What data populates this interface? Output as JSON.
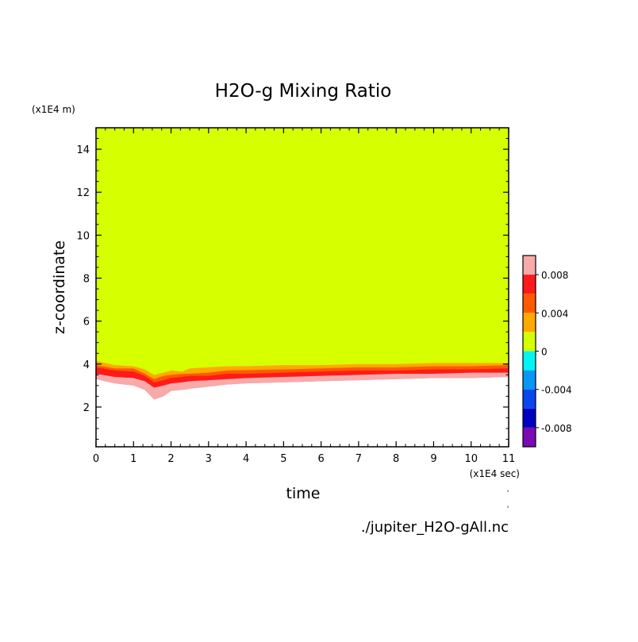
{
  "chart_data": {
    "type": "heatmap",
    "title": "H2O-g Mixing Ratio",
    "xlabel": "time",
    "ylabel": "z-coordinate",
    "x_unit": "(x1E4 sec)",
    "y_unit": "(x1E4 m)",
    "xlim": [
      0,
      11
    ],
    "ylim": [
      0.15,
      15
    ],
    "x_ticks": [
      "0",
      "1",
      "2",
      "3",
      "4",
      "5",
      "6",
      "7",
      "8",
      "9",
      "10",
      "11"
    ],
    "y_ticks": [
      "2",
      "4",
      "6",
      "8",
      "10",
      "12",
      "14"
    ],
    "colorbar": {
      "range": [
        -0.01,
        0.01
      ],
      "labels": [
        "0.008",
        "0.004",
        "0",
        "-0.004",
        "-0.008"
      ],
      "levels": [
        {
          "range": [
            0.008,
            0.01
          ],
          "color": "#f7aaaa"
        },
        {
          "range": [
            0.006,
            0.008
          ],
          "color": "#ff1a1a"
        },
        {
          "range": [
            0.004,
            0.006
          ],
          "color": "#ff5a00"
        },
        {
          "range": [
            0.002,
            0.004
          ],
          "color": "#ffaa00"
        },
        {
          "range": [
            0.0,
            0.002
          ],
          "color": "#d6ff00"
        },
        {
          "range": [
            -0.002,
            0.0
          ],
          "color": "#00f5f5"
        },
        {
          "range": [
            -0.004,
            -0.002
          ],
          "color": "#0a96f5"
        },
        {
          "range": [
            -0.006,
            -0.004
          ],
          "color": "#0a46f0"
        },
        {
          "range": [
            -0.008,
            -0.006
          ],
          "color": "#0000c0"
        },
        {
          "range": [
            -0.01,
            -0.008
          ],
          "color": "#7a0ab4"
        }
      ]
    },
    "background_fill": "#d6ff00",
    "below_fill": "#ffffff",
    "band_colors": [
      "#d6ff00",
      "#ffaa00",
      "#ff5a00",
      "#ff1a1a",
      "#f7aaaa"
    ],
    "band_x": [
      0,
      0.5,
      1,
      1.3,
      1.55,
      1.8,
      2,
      2.3,
      2.5,
      3,
      3.5,
      4,
      5,
      6,
      7,
      8,
      9,
      10,
      11
    ],
    "bands": [
      {
        "top": [
          4.5,
          4.3,
          4.3,
          4.0,
          4.2,
          4.05,
          4.1,
          4.1,
          4.3,
          4.1,
          4.15,
          4.15,
          4.1,
          4.1,
          4.1,
          4.1,
          4.15,
          4.15,
          4.15
        ]
      },
      {
        "top": [
          4.15,
          3.95,
          3.9,
          3.75,
          3.5,
          3.6,
          3.7,
          3.65,
          3.8,
          3.85,
          3.9,
          3.9,
          3.95,
          3.95,
          4.0,
          4.0,
          4.05,
          4.05,
          4.05
        ]
      },
      {
        "top": [
          3.95,
          3.8,
          3.8,
          3.55,
          3.3,
          3.45,
          3.5,
          3.55,
          3.55,
          3.6,
          3.7,
          3.72,
          3.75,
          3.8,
          3.85,
          3.85,
          3.9,
          3.9,
          3.95
        ]
      },
      {
        "top": [
          3.85,
          3.7,
          3.65,
          3.45,
          3.15,
          3.25,
          3.35,
          3.4,
          3.45,
          3.45,
          3.55,
          3.55,
          3.6,
          3.65,
          3.7,
          3.7,
          3.75,
          3.75,
          3.8
        ]
      },
      {
        "top": [
          3.55,
          3.4,
          3.35,
          3.2,
          2.9,
          3.0,
          3.1,
          3.15,
          3.2,
          3.25,
          3.3,
          3.35,
          3.4,
          3.45,
          3.5,
          3.55,
          3.55,
          3.6,
          3.6
        ],
        "bottom": [
          3.3,
          3.1,
          3.0,
          2.8,
          2.35,
          2.5,
          2.75,
          2.8,
          2.85,
          2.95,
          3.05,
          3.1,
          3.15,
          3.2,
          3.25,
          3.3,
          3.35,
          3.35,
          3.4
        ]
      }
    ],
    "source": "./jupiter_H2O-gAll.nc"
  }
}
